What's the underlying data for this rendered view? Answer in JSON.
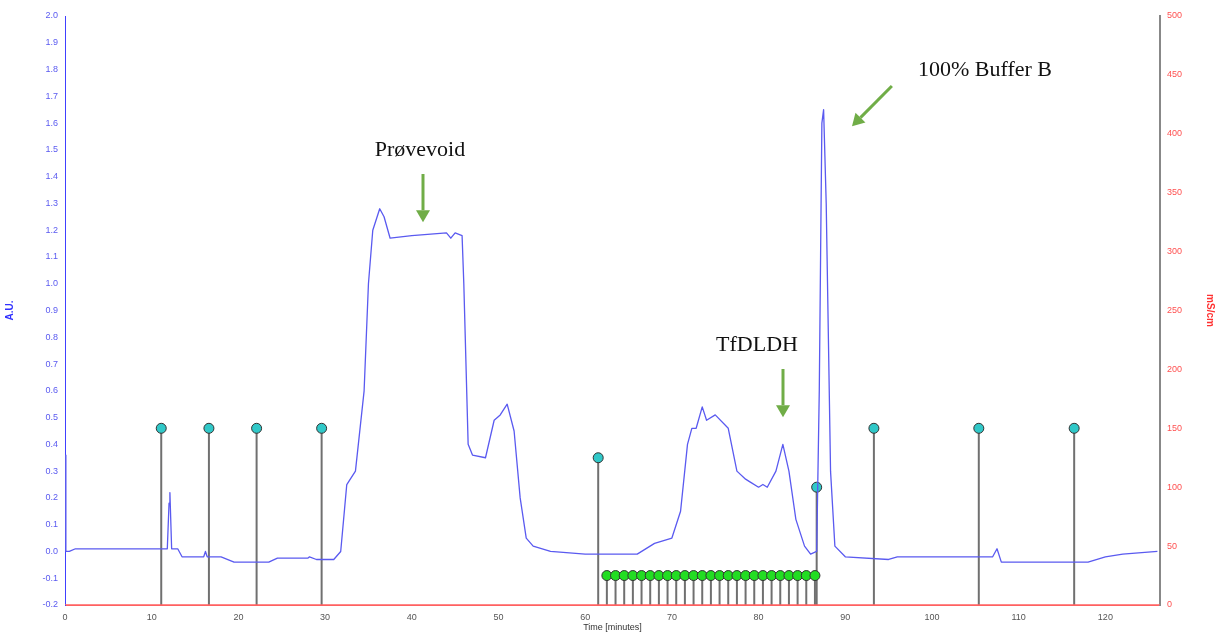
{
  "chart_data": {
    "type": "line",
    "xlabel": "Time [minutes]",
    "ylabel": "A.U.",
    "y2label": "mS/cm",
    "xlim": [
      0,
      126.3
    ],
    "xticks": [
      0,
      10,
      20,
      30,
      40,
      50,
      60,
      70,
      80,
      90,
      100,
      110,
      120
    ],
    "ylim": [
      -0.2,
      2.0
    ],
    "yticks": [
      -0.2,
      -0.1,
      {
        "value": 0,
        "label": "0.0"
      },
      0.1,
      0.2,
      0.3,
      0.4,
      0.5,
      0.6,
      0.7,
      0.8,
      0.9,
      {
        "value": 1,
        "label": "1.0"
      },
      1.1,
      1.2,
      1.3,
      1.4,
      1.5,
      1.6,
      1.7,
      1.8,
      1.9,
      {
        "value": 2,
        "label": "2.0"
      }
    ],
    "y2lim": [
      0,
      500
    ],
    "y2ticks": [
      0,
      50,
      100,
      150,
      200,
      250,
      300,
      350,
      400,
      450,
      500
    ],
    "grid": false,
    "legend": false,
    "line_style": "solid",
    "series": [
      {
        "color": "#5a5af0",
        "x": [
          0,
          0.1,
          0.5,
          1.2,
          11,
          11.8,
          12.0,
          12.1,
          12.3,
          13,
          13.5,
          16,
          16.2,
          16.4,
          18,
          19.5,
          23.5,
          24.5,
          28,
          28.2,
          29,
          31,
          31.8,
          32.5,
          33.5,
          34.5,
          35,
          35.5,
          36.3,
          36.8,
          37.5,
          40,
          44,
          44.5,
          45,
          45.8,
          46,
          46.5,
          47,
          48.5,
          49.5,
          50.2,
          51,
          51.8,
          52.5,
          53.2,
          54,
          56,
          60,
          66,
          68,
          70,
          71,
          71.8,
          72.3,
          72.8,
          73.5,
          74,
          75,
          76.5,
          77.5,
          78.5,
          79,
          80,
          80.5,
          81,
          82,
          82.8,
          83.5,
          84.3,
          85.3,
          86,
          86.7,
          87.0,
          87.3,
          87.5,
          87.8,
          88.3,
          88.8,
          90,
          95,
          96,
          107,
          107.5,
          108,
          118,
          120,
          122,
          126
        ],
        "values": [
          0.36,
          0,
          0,
          0.01,
          0.01,
          0.01,
          0.18,
          0.22,
          0.01,
          0.01,
          -0.02,
          -0.02,
          0.0,
          -0.02,
          -0.02,
          -0.04,
          -0.04,
          -0.025,
          -0.025,
          -0.02,
          -0.03,
          -0.03,
          0.0,
          0.25,
          0.3,
          0.6,
          1.0,
          1.2,
          1.28,
          1.25,
          1.17,
          1.18,
          1.19,
          1.17,
          1.19,
          1.18,
          1.0,
          0.4,
          0.36,
          0.35,
          0.49,
          0.51,
          0.55,
          0.45,
          0.2,
          0.05,
          0.02,
          0.0,
          -0.01,
          -0.01,
          0.03,
          0.05,
          0.15,
          0.4,
          0.46,
          0.46,
          0.54,
          0.49,
          0.51,
          0.46,
          0.3,
          0.27,
          0.26,
          0.24,
          0.25,
          0.24,
          0.3,
          0.4,
          0.3,
          0.12,
          0.02,
          -0.01,
          0.0,
          0.6,
          1.6,
          1.65,
          1.3,
          0.3,
          0.02,
          -0.02,
          -0.03,
          -0.02,
          -0.02,
          0.01,
          -0.04,
          -0.04,
          -0.02,
          -0.01,
          0.0
        ]
      },
      {
        "axis": "y2",
        "color": "#ff6060",
        "x": [
          0,
          126.3
        ],
        "values": [
          0,
          0
        ]
      },
      {
        "type": "scatter",
        "color": "#30c8c8",
        "x": [
          11.1,
          16.6,
          22.1,
          29.6,
          61.5,
          86.7,
          93.3,
          105.4,
          116.4
        ],
        "values": [
          0.46,
          0.46,
          0.46,
          0.46,
          0.35,
          0.24,
          0.46,
          0.46,
          0.46
        ],
        "errors": [
          [
            -0.2,
            0.46
          ],
          [
            -0.2,
            0.46
          ],
          [
            -0.2,
            0.46
          ],
          [
            -0.2,
            0.46
          ],
          [
            -0.2,
            0.35
          ],
          [
            -0.2,
            0.24
          ],
          [
            -0.2,
            0.46
          ],
          [
            -0.2,
            0.46
          ],
          [
            -0.2,
            0.46
          ]
        ]
      },
      {
        "type": "scatter",
        "color": "#22dd22",
        "x": [
          62.5,
          63.5,
          64.5,
          65.5,
          66.5,
          67.5,
          68.5,
          69.5,
          70.5,
          71.5,
          72.5,
          73.5,
          74.5,
          75.5,
          76.5,
          77.5,
          78.5,
          79.5,
          80.5,
          81.5,
          82.5,
          83.5,
          84.5,
          85.5,
          86.5
        ],
        "values": [
          -0.09,
          -0.09,
          -0.09,
          -0.09,
          -0.09,
          -0.09,
          -0.09,
          -0.09,
          -0.09,
          -0.09,
          -0.09,
          -0.09,
          -0.09,
          -0.09,
          -0.09,
          -0.09,
          -0.09,
          -0.09,
          -0.09,
          -0.09,
          -0.09,
          -0.09,
          -0.09,
          -0.09,
          -0.09
        ],
        "errors": [
          [
            -0.2,
            -0.09
          ],
          [
            -0.2,
            -0.09
          ],
          [
            -0.2,
            -0.09
          ],
          [
            -0.2,
            -0.09
          ],
          [
            -0.2,
            -0.09
          ],
          [
            -0.2,
            -0.09
          ],
          [
            -0.2,
            -0.09
          ],
          [
            -0.2,
            -0.09
          ],
          [
            -0.2,
            -0.09
          ],
          [
            -0.2,
            -0.09
          ],
          [
            -0.2,
            -0.09
          ],
          [
            -0.2,
            -0.09
          ],
          [
            -0.2,
            -0.09
          ],
          [
            -0.2,
            -0.09
          ],
          [
            -0.2,
            -0.09
          ],
          [
            -0.2,
            -0.09
          ],
          [
            -0.2,
            -0.09
          ],
          [
            -0.2,
            -0.09
          ],
          [
            -0.2,
            -0.09
          ],
          [
            -0.2,
            -0.09
          ],
          [
            -0.2,
            -0.09
          ],
          [
            -0.2,
            -0.09
          ],
          [
            -0.2,
            -0.09
          ],
          [
            -0.2,
            -0.09
          ],
          [
            -0.2,
            -0.09
          ]
        ]
      }
    ],
    "annotations": [
      "Prøvevoid",
      "TfDLDH",
      "100% Buffer B"
    ]
  }
}
